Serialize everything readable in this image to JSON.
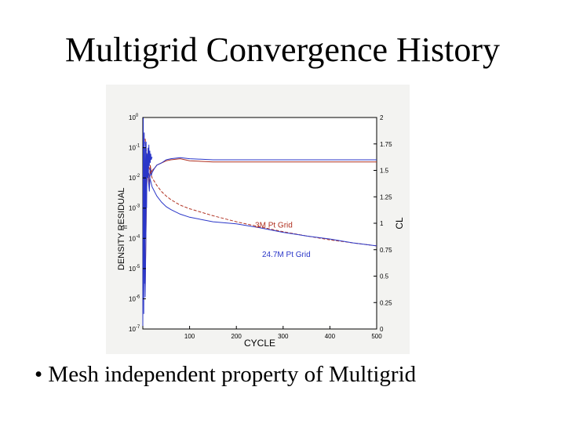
{
  "slide": {
    "title": "Multigrid Convergence History",
    "bullet_symbol": "•",
    "bullet_text": "Mesh independent property of Multigrid"
  },
  "chart_data": {
    "type": "line",
    "title": "",
    "xlabel": "CYCLE",
    "ylabel_left": "DENSITY RESIDUAL",
    "ylabel_left_subscript": "h",
    "ylabel_right": "CL",
    "x_ticks": [
      "100",
      "200",
      "300",
      "400",
      "500"
    ],
    "x_tick_values": [
      100,
      200,
      300,
      400,
      500
    ],
    "xlim": [
      0,
      500
    ],
    "y_left_scale": "log",
    "y_left_ticks": [
      "10",
      "10",
      "10",
      "10",
      "10",
      "10",
      "10",
      "10"
    ],
    "y_left_tick_exponents": [
      "0",
      "-1",
      "-2",
      "-3",
      "-4",
      "-5",
      "-6",
      "-7"
    ],
    "y_left_tick_values": [
      0,
      -1,
      -2,
      -3,
      -4,
      -5,
      -6,
      -7
    ],
    "y_left_lim_exponent": [
      -7,
      0
    ],
    "y_right_ticks": [
      "0",
      "0.25",
      "0.5",
      "0.75",
      "1",
      "1.25",
      "1.5",
      "1.75",
      "2"
    ],
    "y_right_tick_values": [
      0,
      0.25,
      0.5,
      0.75,
      1,
      1.25,
      1.5,
      1.75,
      2
    ],
    "y_right_lim": [
      0,
      2
    ],
    "grid": false,
    "annotations": [
      {
        "text": "3M Pt Grid",
        "color": "#b03020",
        "x": 240,
        "y_right": 0.96
      },
      {
        "text": "24.7M Pt Grid",
        "color": "#2a36c8",
        "x": 255,
        "y_right": 0.68
      }
    ],
    "series": [
      {
        "axis": "right",
        "color": "#b03020",
        "style": "solid",
        "x": [
          1,
          3,
          5,
          8,
          10,
          12,
          14,
          16,
          18,
          20,
          25,
          30,
          40,
          50,
          60,
          80,
          100,
          150,
          200,
          300,
          400,
          500
        ],
        "y": [
          1.85,
          1.2,
          0.4,
          1.3,
          1.55,
          1.45,
          1.35,
          1.55,
          1.48,
          1.5,
          1.52,
          1.55,
          1.57,
          1.59,
          1.6,
          1.61,
          1.59,
          1.58,
          1.58,
          1.58,
          1.58,
          1.58
        ]
      },
      {
        "axis": "right",
        "color": "#2a36c8",
        "style": "solid",
        "x": [
          1,
          3,
          5,
          8,
          10,
          12,
          14,
          16,
          18,
          20,
          25,
          30,
          40,
          50,
          60,
          80,
          100,
          150,
          200,
          300,
          400,
          500
        ],
        "y": [
          1.8,
          1.0,
          0.3,
          1.4,
          1.6,
          1.4,
          1.3,
          1.52,
          1.45,
          1.48,
          1.52,
          1.55,
          1.57,
          1.6,
          1.61,
          1.62,
          1.61,
          1.6,
          1.6,
          1.6,
          1.6,
          1.6
        ]
      },
      {
        "axis": "left",
        "color": "#b03020",
        "style": "dashed",
        "x": [
          5,
          10,
          20,
          30,
          40,
          50,
          60,
          80,
          100,
          150,
          200,
          250,
          300,
          350,
          400,
          450,
          500
        ],
        "y": [
          -0.7,
          -1.5,
          -2.0,
          -2.25,
          -2.45,
          -2.6,
          -2.72,
          -2.9,
          -3.02,
          -3.25,
          -3.45,
          -3.62,
          -3.78,
          -3.92,
          -4.05,
          -4.15,
          -4.25
        ]
      },
      {
        "axis": "left",
        "color": "#2a36c8",
        "style": "solid",
        "x": [
          5,
          10,
          20,
          30,
          40,
          50,
          60,
          80,
          100,
          150,
          200,
          250,
          300,
          350,
          400,
          450,
          500
        ],
        "y": [
          -0.8,
          -1.7,
          -2.3,
          -2.6,
          -2.8,
          -2.95,
          -3.05,
          -3.2,
          -3.3,
          -3.45,
          -3.52,
          -3.65,
          -3.8,
          -3.92,
          -4.02,
          -4.15,
          -4.25
        ]
      },
      {
        "axis": "left",
        "color": "#2a36c8",
        "style": "solid",
        "x": [
          0,
          1,
          2,
          3,
          4,
          5,
          6,
          7,
          8,
          9,
          10,
          11,
          12,
          13,
          14,
          15,
          16,
          17,
          18,
          20
        ],
        "y": [
          -6.9,
          0.0,
          -6.5,
          -0.5,
          -5.5,
          -1.0,
          -4.0,
          -0.8,
          -3.0,
          -1.2,
          -2.0,
          -1.0,
          -1.8,
          -0.9,
          -1.6,
          -1.1,
          -1.5,
          -1.2,
          -1.4,
          -1.3
        ]
      }
    ]
  }
}
